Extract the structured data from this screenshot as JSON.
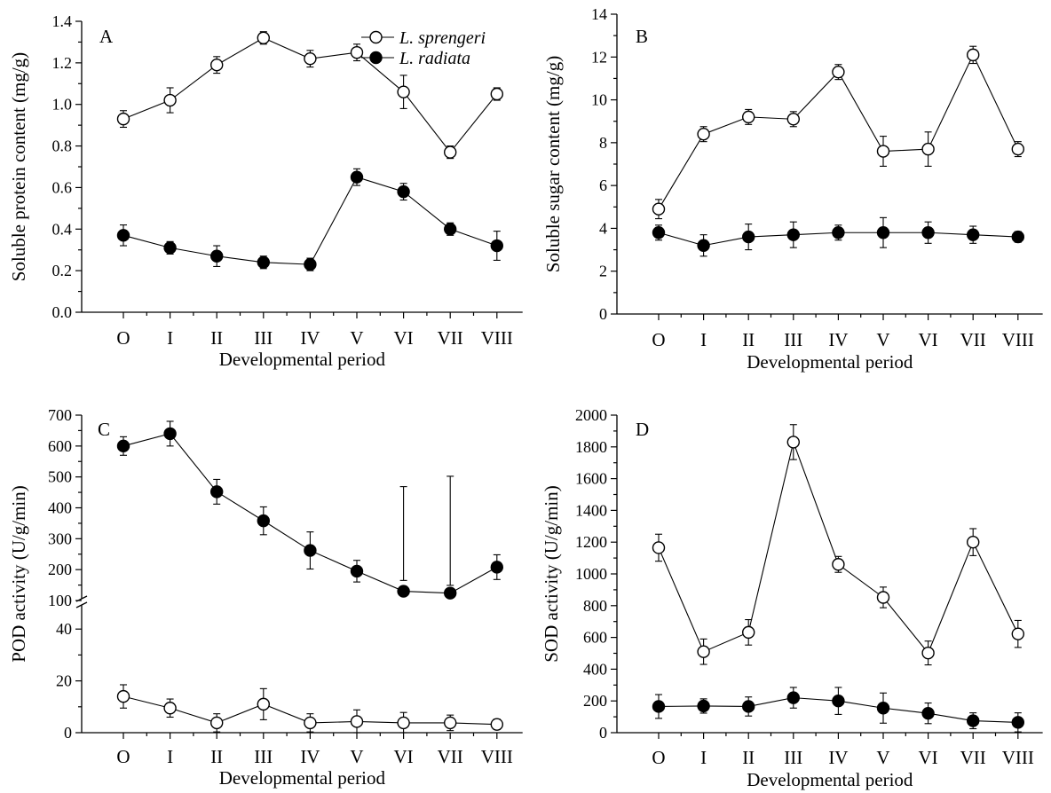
{
  "chart_data": [
    {
      "panel": "A",
      "type": "line",
      "xlabel": "Developmental period",
      "ylabel": "Soluble protein content (mg/g)",
      "categories": [
        "O",
        "I",
        "II",
        "III",
        "IV",
        "V",
        "VI",
        "VII",
        "VIII"
      ],
      "ylim": [
        0,
        1.4
      ],
      "yticks": [
        "0.0",
        "0.2",
        "0.4",
        "0.6",
        "0.8",
        "1.0",
        "1.2",
        "1.4"
      ],
      "legend": [
        {
          "name": "L. sprengeri",
          "marker": "open"
        },
        {
          "name": "L. radiata",
          "marker": "filled"
        }
      ],
      "series": [
        {
          "name": "L. sprengeri",
          "marker": "open",
          "values": [
            0.93,
            1.02,
            1.19,
            1.32,
            1.22,
            1.25,
            1.06,
            0.77,
            1.05
          ],
          "errors": [
            0.04,
            0.06,
            0.04,
            0.03,
            0.04,
            0.04,
            0.08,
            0.03,
            0.03
          ]
        },
        {
          "name": "L. radiata",
          "marker": "filled",
          "values": [
            0.37,
            0.31,
            0.27,
            0.24,
            0.23,
            0.65,
            0.58,
            0.4,
            0.32
          ],
          "errors": [
            0.05,
            0.03,
            0.05,
            0.03,
            0.03,
            0.04,
            0.04,
            0.03,
            0.07
          ]
        }
      ]
    },
    {
      "panel": "B",
      "type": "line",
      "xlabel": "Developmental period",
      "ylabel": "Soluble sugar content (mg/g)",
      "categories": [
        "O",
        "I",
        "II",
        "III",
        "IV",
        "V",
        "VI",
        "VII",
        "VIII"
      ],
      "ylim": [
        0,
        14
      ],
      "yticks": [
        "0",
        "2",
        "4",
        "6",
        "8",
        "10",
        "12",
        "14"
      ],
      "series": [
        {
          "name": "L. sprengeri",
          "marker": "open",
          "values": [
            4.9,
            8.4,
            9.2,
            9.1,
            11.3,
            7.6,
            7.7,
            12.1,
            7.7
          ],
          "errors": [
            0.45,
            0.35,
            0.35,
            0.35,
            0.35,
            0.7,
            0.8,
            0.4,
            0.35
          ]
        },
        {
          "name": "L. radiata",
          "marker": "filled",
          "values": [
            3.8,
            3.2,
            3.6,
            3.7,
            3.8,
            3.8,
            3.8,
            3.7,
            3.6
          ],
          "errors": [
            0.35,
            0.5,
            0.6,
            0.6,
            0.35,
            0.7,
            0.5,
            0.4,
            0.25
          ]
        }
      ]
    },
    {
      "panel": "C",
      "type": "line",
      "xlabel": "Developmental period",
      "ylabel": "POD activity (U/g/min)",
      "categories": [
        "O",
        "I",
        "II",
        "III",
        "IV",
        "V",
        "VI",
        "VII",
        "VIII"
      ],
      "broken_axis": true,
      "ylim_lower": [
        0,
        50
      ],
      "ylim_upper": [
        100,
        700
      ],
      "yticks_lower": [
        "0",
        "20",
        "40"
      ],
      "yticks_upper": [
        "100",
        "200",
        "300",
        "400",
        "500",
        "600",
        "700"
      ],
      "series": [
        {
          "name": "L. sprengeri",
          "marker": "open",
          "values": [
            14,
            9.5,
            3.8,
            11,
            3.8,
            4.3,
            3.8,
            3.8,
            3.2
          ],
          "errors": [
            4.5,
            3.5,
            3.5,
            6,
            3.5,
            4.5,
            4,
            3,
            2
          ]
        },
        {
          "name": "L. radiata",
          "marker": "filled",
          "values": [
            600,
            640,
            452,
            358,
            262,
            195,
            130,
            124,
            208
          ],
          "errors": [
            30,
            40,
            40,
            45,
            60,
            35,
            35,
            25,
            40
          ]
        }
      ]
    },
    {
      "panel": "D",
      "type": "line",
      "xlabel": "Developmental period",
      "ylabel": "SOD activity (U/g/min)",
      "categories": [
        "O",
        "I",
        "II",
        "III",
        "IV",
        "V",
        "VI",
        "VII",
        "VIII"
      ],
      "ylim": [
        0,
        2000
      ],
      "yticks": [
        "0",
        "200",
        "400",
        "600",
        "800",
        "1000",
        "1200",
        "1400",
        "1600",
        "1800",
        "2000"
      ],
      "series": [
        {
          "name": "L. sprengeri",
          "marker": "open",
          "values": [
            1165,
            510,
            632,
            1830,
            1060,
            852,
            502,
            1200,
            622
          ],
          "errors": [
            85,
            80,
            80,
            110,
            50,
            65,
            75,
            85,
            85
          ]
        },
        {
          "name": "L. radiata",
          "marker": "filled",
          "values": [
            165,
            168,
            165,
            220,
            200,
            155,
            122,
            75,
            65
          ],
          "errors": [
            75,
            45,
            60,
            65,
            85,
            95,
            65,
            50,
            60
          ]
        }
      ]
    }
  ]
}
